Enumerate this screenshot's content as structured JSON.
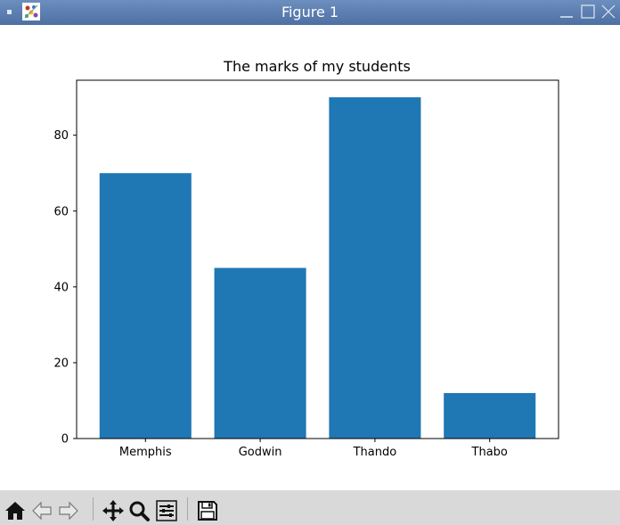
{
  "window": {
    "title": "Figure 1",
    "icons": [
      "menu-icon",
      "app-icon",
      "minimize-icon",
      "maximize-icon",
      "close-icon"
    ]
  },
  "toolbar": {
    "buttons": [
      {
        "name": "home-button",
        "icon": "home-icon"
      },
      {
        "name": "back-button",
        "icon": "arrow-left-icon"
      },
      {
        "name": "forward-button",
        "icon": "arrow-right-icon"
      },
      {
        "name": "pan-button",
        "icon": "move-icon"
      },
      {
        "name": "zoom-button",
        "icon": "magnifier-icon"
      },
      {
        "name": "configure-subplots-button",
        "icon": "sliders-icon"
      },
      {
        "name": "save-button",
        "icon": "floppy-disk-icon"
      }
    ]
  },
  "colors": {
    "bar": "#1f77b4",
    "titlebar": "#5a7db0",
    "toolbar": "#d9d9d9"
  },
  "chart_data": {
    "type": "bar",
    "title": "The marks of my students",
    "xlabel": "",
    "ylabel": "",
    "categories": [
      "Memphis",
      "Godwin",
      "Thando",
      "Thabo"
    ],
    "values": [
      70,
      45,
      90,
      12
    ],
    "ylim": [
      0,
      94.5
    ],
    "yticks": [
      0,
      20,
      40,
      60,
      80
    ],
    "grid": false,
    "legend": "none"
  }
}
